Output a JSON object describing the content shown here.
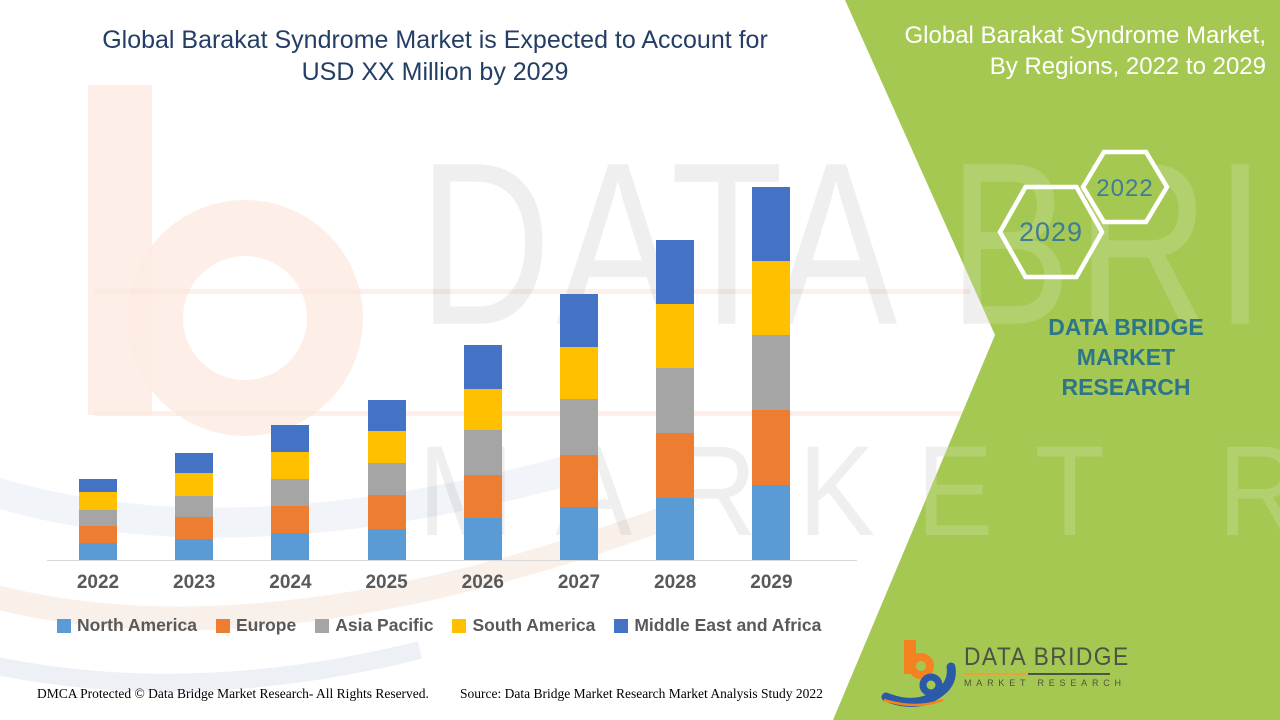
{
  "header": {
    "title_line1": "Global Barakat Syndrome Market is Expected to Account for",
    "title_line2": "USD XX Million by 2029"
  },
  "side_panel": {
    "title_line1": "Global Barakat Syndrome Market,",
    "title_line2": "By Regions, 2022 to 2029",
    "hexagons": [
      {
        "label": "2029"
      },
      {
        "label": "2022"
      }
    ],
    "brand_line1": "DATA BRIDGE MARKET",
    "brand_line2": "RESEARCH",
    "panel_color": "#a5c853",
    "brand_text_color": "#2d7689"
  },
  "watermark": {
    "line1": "DATA BRIDGE",
    "line2": "MARKET RESEARCH"
  },
  "chart_data": {
    "type": "bar",
    "stacked": true,
    "title": "Global Barakat Syndrome Market is Expected to Account for USD XX Million by 2029",
    "xlabel": "",
    "ylabel": "",
    "value_axis_note": "No numeric axis shown; values are relative heights (market size in USD XX Million)",
    "grid": false,
    "legend_position": "bottom",
    "categories": [
      "2022",
      "2023",
      "2024",
      "2025",
      "2026",
      "2027",
      "2028",
      "2029"
    ],
    "series": [
      {
        "name": "North America",
        "color": "#5b9bd5",
        "values": [
          17,
          21,
          27,
          31,
          42,
          53,
          62,
          75
        ]
      },
      {
        "name": "Europe",
        "color": "#ed7d31",
        "values": [
          17,
          22,
          27,
          34,
          43,
          52,
          65,
          75
        ]
      },
      {
        "name": "Asia Pacific",
        "color": "#a5a5a5",
        "values": [
          16,
          21,
          27,
          32,
          45,
          56,
          65,
          75
        ]
      },
      {
        "name": "South America",
        "color": "#ffc000",
        "values": [
          18,
          23,
          27,
          32,
          41,
          52,
          64,
          74
        ]
      },
      {
        "name": "Middle East and Africa",
        "color": "#4472c4",
        "values": [
          13,
          20,
          27,
          31,
          44,
          53,
          64,
          74
        ]
      }
    ],
    "totals": [
      81,
      107,
      135,
      160,
      215,
      266,
      320,
      373
    ]
  },
  "footer": {
    "dmca": "DMCA Protected © Data Bridge Market Research- All Rights Reserved.",
    "source": "Source: Data Bridge Market Research Market Analysis Study 2022"
  },
  "logo": {
    "name": "DATA BRIDGE",
    "subtitle": "MARKET RESEARCH"
  }
}
